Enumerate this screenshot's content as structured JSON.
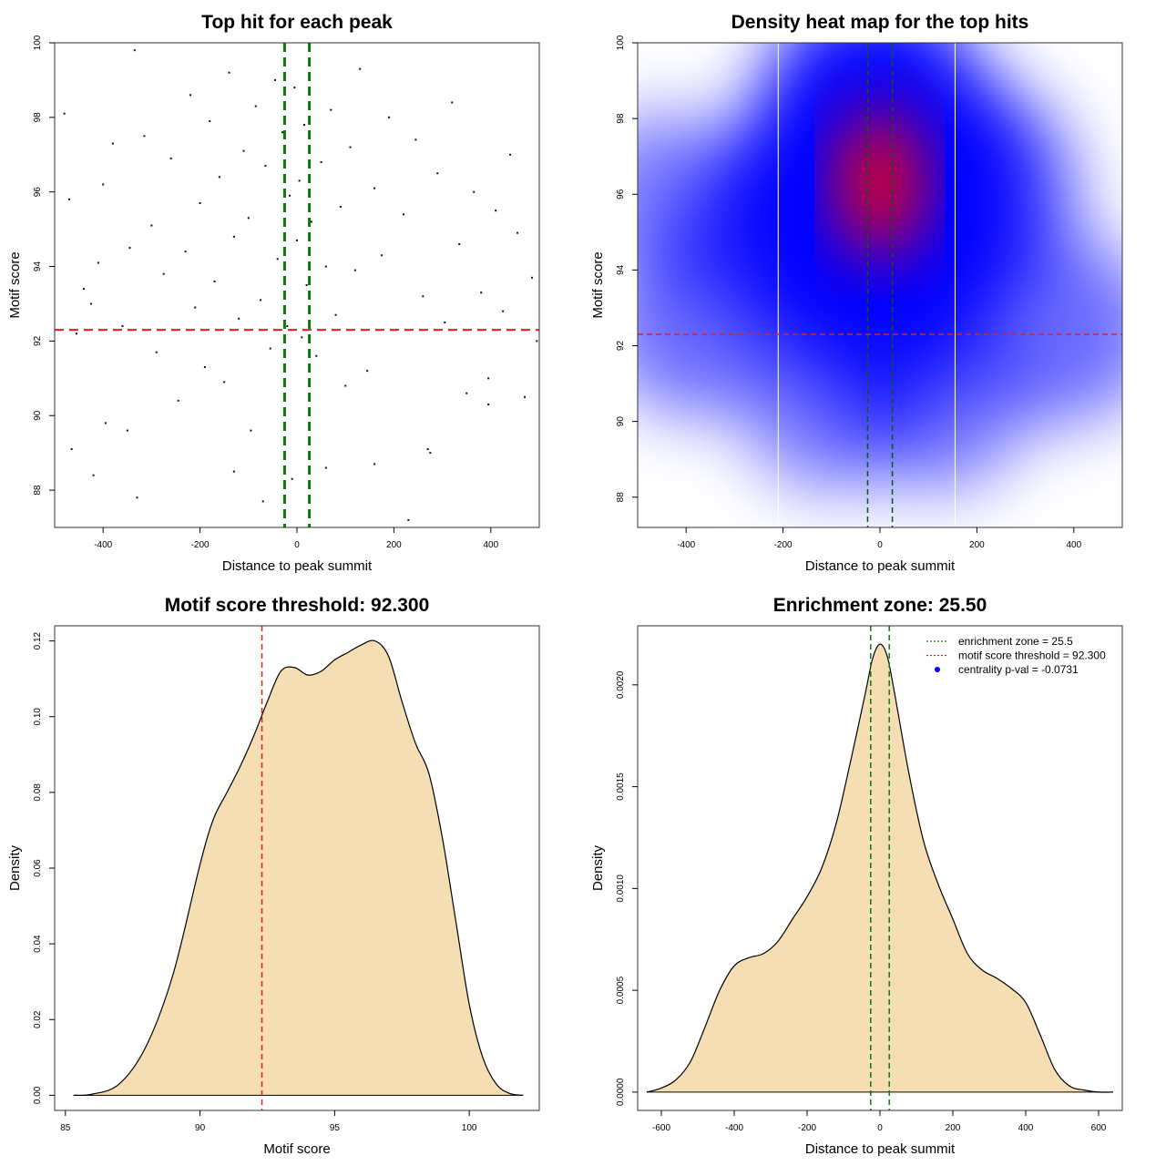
{
  "chart_data": [
    {
      "type": "scatter",
      "title": "Top hit for each peak",
      "xlabel": "Distance to peak summit",
      "ylabel": "Motif score",
      "xlim": [
        -500,
        500
      ],
      "ylim": [
        87,
        100
      ],
      "xticks": [
        -400,
        -200,
        0,
        200,
        400
      ],
      "yticks": [
        88,
        90,
        92,
        94,
        96,
        98,
        100
      ],
      "grid": false,
      "hline": 92.3,
      "vlines": [
        -25.5,
        25.5
      ],
      "line_colors": {
        "threshold": "#e02020",
        "zone": "#0b7a0b"
      },
      "points": [
        [
          -480,
          98.1
        ],
        [
          -470,
          95.8
        ],
        [
          -455,
          92.2
        ],
        [
          -440,
          93.4
        ],
        [
          -425,
          93.0
        ],
        [
          -410,
          94.1
        ],
        [
          -400,
          96.2
        ],
        [
          -395,
          89.8
        ],
        [
          -380,
          97.3
        ],
        [
          -360,
          92.4
        ],
        [
          -345,
          94.5
        ],
        [
          -335,
          99.8
        ],
        [
          -330,
          87.8
        ],
        [
          -315,
          97.5
        ],
        [
          -300,
          95.1
        ],
        [
          -290,
          91.7
        ],
        [
          -275,
          93.8
        ],
        [
          -260,
          96.9
        ],
        [
          -245,
          90.4
        ],
        [
          -230,
          94.4
        ],
        [
          -220,
          98.6
        ],
        [
          -210,
          92.9
        ],
        [
          -200,
          95.7
        ],
        [
          -190,
          91.3
        ],
        [
          -180,
          97.9
        ],
        [
          -170,
          93.6
        ],
        [
          -160,
          96.4
        ],
        [
          -150,
          90.9
        ],
        [
          -140,
          99.2
        ],
        [
          -130,
          94.8
        ],
        [
          -120,
          92.6
        ],
        [
          -110,
          97.1
        ],
        [
          -100,
          95.3
        ],
        [
          -95,
          89.6
        ],
        [
          -85,
          98.3
        ],
        [
          -75,
          93.1
        ],
        [
          -65,
          96.7
        ],
        [
          -55,
          91.8
        ],
        [
          -45,
          99.0
        ],
        [
          -40,
          94.2
        ],
        [
          -30,
          97.6
        ],
        [
          -20,
          92.4
        ],
        [
          -15,
          95.9
        ],
        [
          -10,
          88.3
        ],
        [
          -5,
          98.8
        ],
        [
          0,
          94.7
        ],
        [
          5,
          96.3
        ],
        [
          10,
          92.1
        ],
        [
          15,
          97.8
        ],
        [
          20,
          93.5
        ],
        [
          25,
          99.1
        ],
        [
          30,
          95.2
        ],
        [
          40,
          91.6
        ],
        [
          50,
          96.8
        ],
        [
          60,
          94.0
        ],
        [
          70,
          98.2
        ],
        [
          80,
          92.7
        ],
        [
          90,
          95.6
        ],
        [
          100,
          90.8
        ],
        [
          110,
          97.2
        ],
        [
          120,
          93.9
        ],
        [
          130,
          99.3
        ],
        [
          145,
          91.2
        ],
        [
          160,
          96.1
        ],
        [
          175,
          94.3
        ],
        [
          190,
          98.0
        ],
        [
          205,
          92.3
        ],
        [
          220,
          95.4
        ],
        [
          230,
          87.2
        ],
        [
          245,
          97.4
        ],
        [
          260,
          93.2
        ],
        [
          275,
          89.0
        ],
        [
          290,
          96.5
        ],
        [
          305,
          92.5
        ],
        [
          320,
          98.4
        ],
        [
          335,
          94.6
        ],
        [
          350,
          90.6
        ],
        [
          365,
          96.0
        ],
        [
          380,
          93.3
        ],
        [
          395,
          91.0
        ],
        [
          410,
          95.5
        ],
        [
          425,
          92.8
        ],
        [
          440,
          97.0
        ],
        [
          455,
          94.9
        ],
        [
          470,
          90.5
        ],
        [
          485,
          93.7
        ],
        [
          495,
          92.0
        ],
        [
          -465,
          89.1
        ],
        [
          -420,
          88.4
        ],
        [
          -350,
          89.6
        ],
        [
          -130,
          88.5
        ],
        [
          -70,
          87.7
        ],
        [
          60,
          88.6
        ],
        [
          160,
          88.7
        ],
        [
          270,
          89.1
        ],
        [
          395,
          90.3
        ]
      ]
    },
    {
      "type": "heatmap",
      "title": "Density heat map for the top hits",
      "xlabel": "Distance to peak summit",
      "ylabel": "Motif score",
      "xlim": [
        -500,
        500
      ],
      "ylim": [
        87.2,
        100
      ],
      "xticks": [
        -400,
        -200,
        0,
        200,
        400
      ],
      "yticks": [
        88,
        90,
        92,
        94,
        96,
        98,
        100
      ],
      "hline": 92.3,
      "vlines": [
        -25.5,
        25.5
      ],
      "white_vlines": [
        -210,
        155
      ],
      "colors": {
        "low": "#ffffff",
        "mid": "#0000ff",
        "high": "#ff0000"
      },
      "density_centers": [
        {
          "x": 0,
          "y": 96.2,
          "weight": 1.0
        },
        {
          "x": -15,
          "y": 98.5,
          "weight": 0.55
        },
        {
          "x": 10,
          "y": 93.5,
          "weight": 0.6
        },
        {
          "x": 190,
          "y": 96.0,
          "weight": 0.5
        },
        {
          "x": -200,
          "y": 95.0,
          "weight": 0.45
        },
        {
          "x": -380,
          "y": 92.6,
          "weight": 0.35
        },
        {
          "x": 380,
          "y": 92.4,
          "weight": 0.35
        },
        {
          "x": -440,
          "y": 96.0,
          "weight": 0.25
        },
        {
          "x": 120,
          "y": 90.5,
          "weight": 0.3
        },
        {
          "x": -100,
          "y": 90.5,
          "weight": 0.3
        }
      ]
    },
    {
      "type": "area",
      "title": "Motif score threshold: 92.300",
      "xlabel": "Motif score",
      "ylabel": "Density",
      "xlim": [
        84.6,
        102.6
      ],
      "ylim": [
        -0.004,
        0.124
      ],
      "xticks": [
        85,
        90,
        95,
        100
      ],
      "yticks": [
        0.0,
        0.02,
        0.04,
        0.06,
        0.08,
        0.1,
        0.12
      ],
      "ytick_labels": [
        "0.00",
        "0.02",
        "0.04",
        "0.06",
        "0.08",
        "0.10",
        "0.12"
      ],
      "fill_color": "#f5deb3",
      "vline": 92.3,
      "vline_color": "#e02020",
      "x": [
        85.3,
        86.0,
        87.0,
        88.0,
        89.0,
        90.0,
        90.5,
        91.0,
        91.5,
        92.0,
        92.5,
        93.0,
        93.5,
        94.0,
        94.5,
        95.0,
        95.5,
        96.0,
        96.5,
        97.0,
        97.5,
        98.0,
        98.5,
        99.0,
        99.5,
        100.0,
        100.5,
        101.0,
        101.5,
        102.0
      ],
      "y": [
        0.0,
        0.0003,
        0.003,
        0.013,
        0.032,
        0.061,
        0.073,
        0.08,
        0.087,
        0.095,
        0.104,
        0.112,
        0.113,
        0.111,
        0.112,
        0.115,
        0.117,
        0.119,
        0.12,
        0.116,
        0.104,
        0.093,
        0.085,
        0.068,
        0.046,
        0.024,
        0.01,
        0.003,
        0.0005,
        0.0
      ]
    },
    {
      "type": "area",
      "title": "Enrichment zone: 25.50",
      "xlabel": "Distance to peak summit",
      "ylabel": "Density",
      "xlim": [
        -665,
        665
      ],
      "ylim": [
        -9e-05,
        0.00229
      ],
      "xticks": [
        -600,
        -400,
        -200,
        0,
        200,
        400,
        600
      ],
      "yticks": [
        0.0,
        0.0005,
        0.001,
        0.0015,
        0.002
      ],
      "ytick_labels": [
        "0.0000",
        "0.0005",
        "0.0010",
        "0.0015",
        "0.0020"
      ],
      "fill_color": "#f5deb3",
      "vlines": [
        -25.5,
        25.5
      ],
      "vline_color": "#0b7a0b",
      "x": [
        -640,
        -600,
        -560,
        -520,
        -480,
        -440,
        -400,
        -360,
        -320,
        -280,
        -240,
        -200,
        -160,
        -120,
        -80,
        -40,
        -20,
        0,
        20,
        40,
        80,
        120,
        160,
        200,
        240,
        280,
        320,
        360,
        400,
        440,
        480,
        520,
        560,
        600,
        640
      ],
      "y": [
        0.0,
        2e-05,
        6e-05,
        0.00015,
        0.00032,
        0.0005,
        0.00062,
        0.00066,
        0.00068,
        0.00074,
        0.00085,
        0.00096,
        0.0011,
        0.00132,
        0.00163,
        0.00196,
        0.00213,
        0.0022,
        0.00214,
        0.00196,
        0.00156,
        0.00123,
        0.00102,
        0.00085,
        0.00068,
        0.0006,
        0.00056,
        0.00051,
        0.00044,
        0.00028,
        0.00011,
        3e-05,
        1e-05,
        0.0,
        0.0
      ],
      "legend": {
        "placement": "top-right",
        "entries": [
          {
            "label": "enrichment zone = 25.5",
            "kind": "dotted-line",
            "color": "#0b7a0b"
          },
          {
            "label": "motif score threshold = 92.300",
            "kind": "dotted-line",
            "color": "#e02020"
          },
          {
            "label": "centrality p-val = -0.0731",
            "kind": "point",
            "color": "#0000ff"
          }
        ]
      }
    }
  ]
}
